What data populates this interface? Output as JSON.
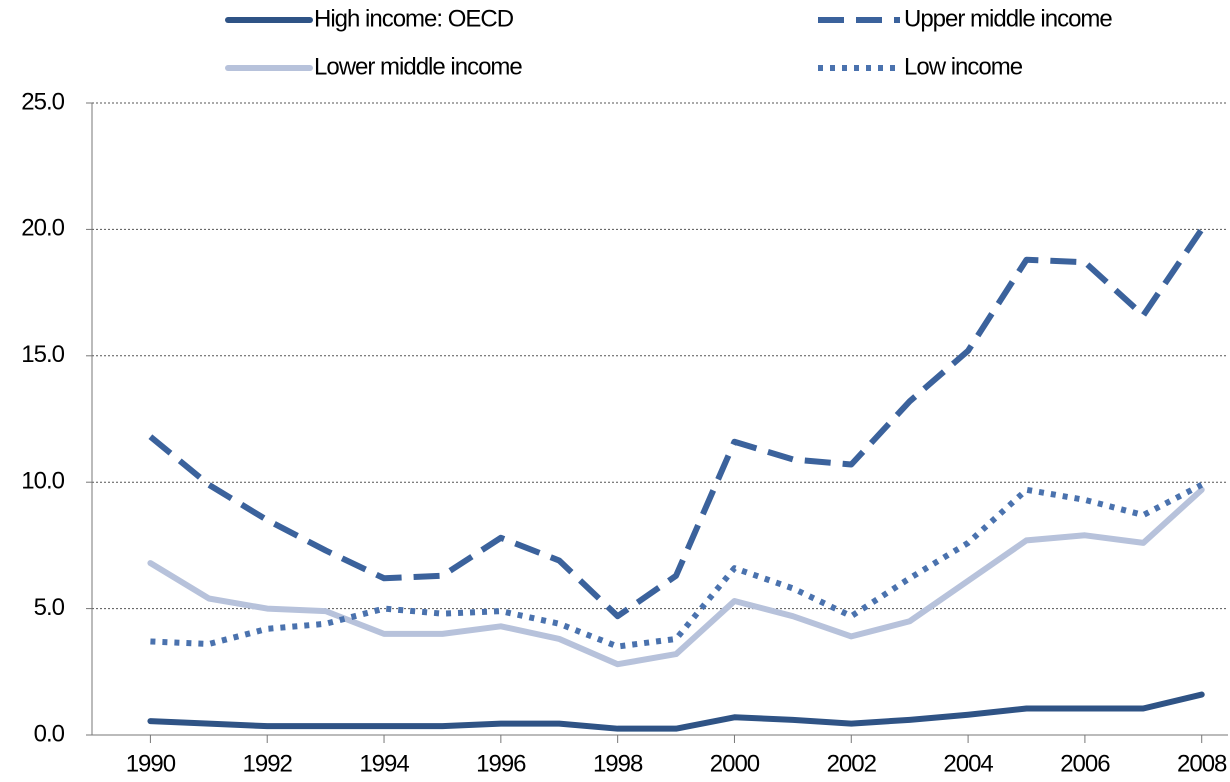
{
  "chart_data": {
    "type": "line",
    "x": [
      1990,
      1991,
      1992,
      1993,
      1994,
      1995,
      1996,
      1997,
      1998,
      1999,
      2000,
      2001,
      2002,
      2003,
      2004,
      2005,
      2006,
      2007,
      2008
    ],
    "series": [
      {
        "name": "High income: OECD",
        "color": "#2f5385",
        "dash": "solid",
        "values": [
          0.55,
          0.45,
          0.35,
          0.35,
          0.35,
          0.35,
          0.45,
          0.45,
          0.25,
          0.25,
          0.7,
          0.6,
          0.45,
          0.6,
          0.8,
          1.05,
          1.05,
          1.05,
          1.6
        ]
      },
      {
        "name": "Upper middle income",
        "color": "#3b629c",
        "dash": "dashed",
        "values": [
          11.8,
          9.9,
          8.5,
          7.3,
          6.2,
          6.3,
          7.8,
          6.9,
          4.7,
          6.3,
          11.6,
          10.9,
          10.7,
          13.2,
          15.2,
          18.8,
          18.7,
          16.6,
          20.0
        ]
      },
      {
        "name": "Lower middle income",
        "color": "#b7c2db",
        "dash": "solid",
        "values": [
          6.8,
          5.4,
          5.0,
          4.9,
          4.0,
          4.0,
          4.3,
          3.8,
          2.8,
          3.2,
          5.3,
          4.7,
          3.9,
          4.5,
          6.1,
          7.7,
          7.9,
          7.6,
          9.7
        ]
      },
      {
        "name": "Low income",
        "color": "#4a72ae",
        "dash": "dotted",
        "values": [
          3.7,
          3.6,
          4.2,
          4.4,
          5.0,
          4.8,
          4.9,
          4.4,
          3.5,
          3.8,
          6.6,
          5.8,
          4.7,
          6.2,
          7.6,
          9.7,
          9.3,
          8.7,
          9.9
        ]
      }
    ],
    "xlim": [
      1989,
      2008.45
    ],
    "xticks": [
      1990,
      1992,
      1994,
      1996,
      1998,
      2000,
      2002,
      2004,
      2006,
      2008
    ],
    "ylim": [
      0,
      25
    ],
    "yticks": [
      {
        "value": 0,
        "label": "0.0"
      },
      {
        "value": 5,
        "label": "5.0"
      },
      {
        "value": 10,
        "label": "10.0"
      },
      {
        "value": 15,
        "label": "15.0"
      },
      {
        "value": 20,
        "label": "20.0"
      },
      {
        "value": 25,
        "label": "25.0"
      }
    ],
    "grid": true,
    "legend": "top"
  }
}
